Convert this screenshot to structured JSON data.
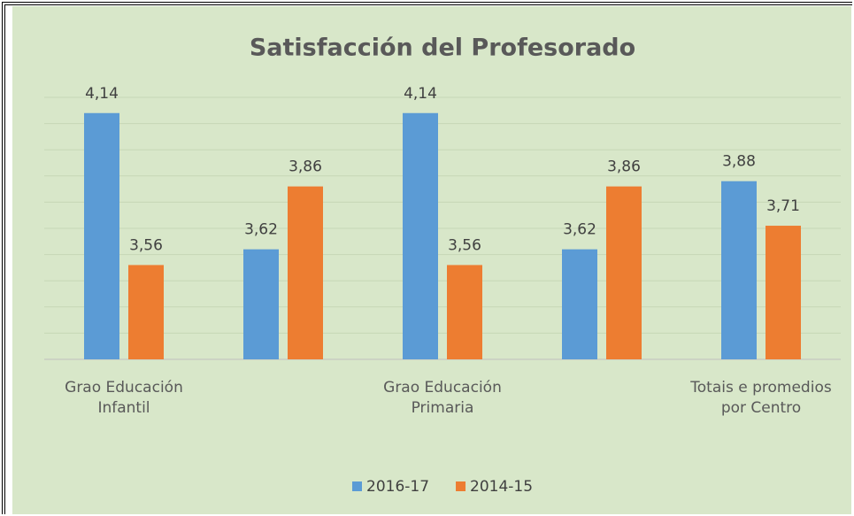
{
  "chart_data": {
    "type": "bar",
    "title": "Satisfacción del Profesorado",
    "categories": [
      "Grao Educación Infantil",
      null,
      "Grao Educación Primaria",
      null,
      "Totais e promedios por Centro"
    ],
    "series": [
      {
        "name": "2016-17",
        "color": "#5b9bd5",
        "values": [
          4.14,
          3.62,
          4.14,
          3.62,
          3.88
        ],
        "value_labels": [
          "4,14",
          "3,62",
          "4,14",
          "3,62",
          "3,88"
        ]
      },
      {
        "name": "2014-15",
        "color": "#ed7d31",
        "values": [
          3.56,
          3.86,
          3.56,
          3.86,
          3.71
        ],
        "value_labels": [
          "3,56",
          "3,86",
          "3,56",
          "3,86",
          "3,71"
        ]
      }
    ],
    "ylim": [
      3.2,
      4.2
    ],
    "yticks": [
      3.2,
      3.3,
      3.4,
      3.5,
      3.6,
      3.7,
      3.8,
      3.9,
      4.0,
      4.1,
      4.2
    ],
    "grid": true,
    "legend": "bottom"
  }
}
